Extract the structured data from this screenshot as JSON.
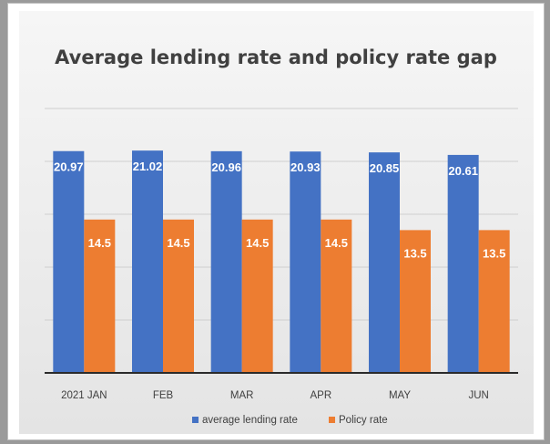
{
  "chart_data": {
    "type": "bar",
    "title": "Average lending rate and policy rate gap",
    "categories": [
      "2021 JAN",
      "FEB",
      "MAR",
      "APR",
      "MAY",
      "JUN"
    ],
    "series": [
      {
        "name": "average lending rate",
        "values": [
          20.97,
          21.02,
          20.96,
          20.93,
          20.85,
          20.61
        ],
        "color": "#4472c4",
        "labels": [
          "20.97",
          "21.02",
          "20.96",
          "20.93",
          "20.85",
          "20.61"
        ]
      },
      {
        "name": "Policy rate",
        "values": [
          14.5,
          14.5,
          14.5,
          14.5,
          13.5,
          13.5
        ],
        "color": "#ed7d31",
        "labels": [
          "14.5",
          "14.5",
          "14.5",
          "14.5",
          "13.5",
          "13.5"
        ]
      }
    ],
    "ylim": [
      0,
      25
    ],
    "grid": true,
    "legend": "bottom"
  }
}
